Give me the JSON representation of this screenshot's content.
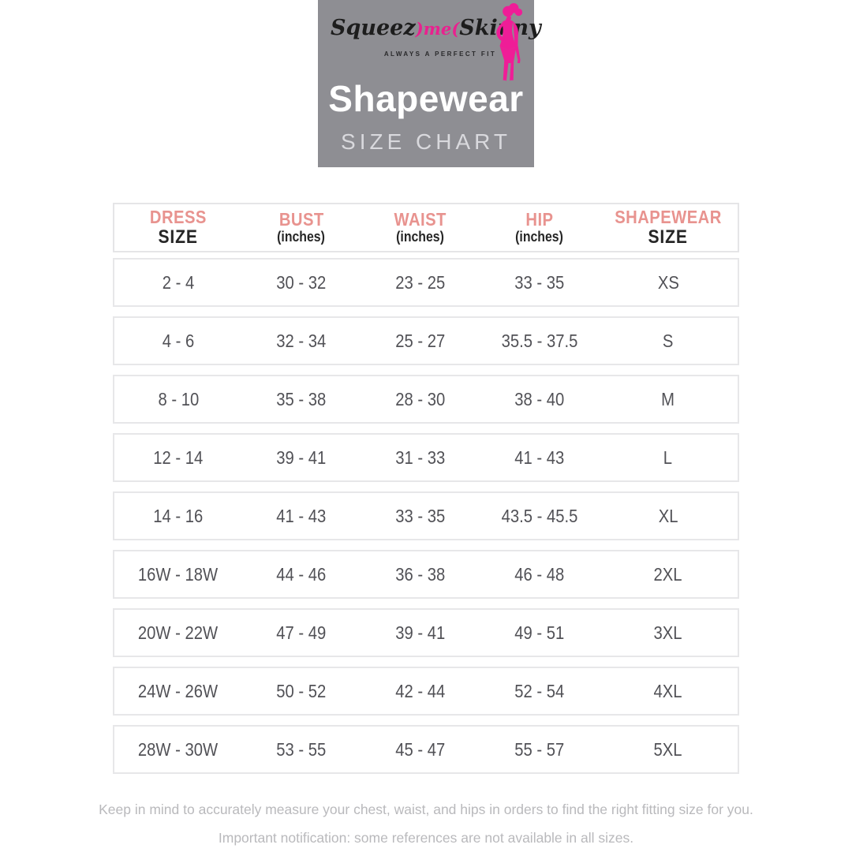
{
  "header": {
    "logo": {
      "part1": "Squeez",
      "part2": ")me(",
      "part3": "Skinny",
      "tagline": "ALWAYS A PERFECT FIT"
    },
    "title": "Shapewear",
    "subtitle": "SIZE CHART"
  },
  "colors": {
    "hero_background": "#8e8e93",
    "logo_pink": "#e9218f",
    "silhouette_pink": "#ef1d97",
    "column_header_pink": "#e8938f",
    "column_header_black": "#262626",
    "cell_text_gray": "#515156",
    "row_border": "#e7e7e9",
    "footer_gray": "#b9b9bc"
  },
  "chart_data": {
    "type": "table",
    "title": "Shapewear Size Chart",
    "columns": [
      {
        "label": "DRESS",
        "sublabel": "SIZE"
      },
      {
        "label": "BUST",
        "sublabel": "(inches)"
      },
      {
        "label": "WAIST",
        "sublabel": "(inches)"
      },
      {
        "label": "HIP",
        "sublabel": "(inches)"
      },
      {
        "label": "SHAPEWEAR",
        "sublabel": "SIZE"
      }
    ],
    "rows": [
      [
        "2 - 4",
        "30 - 32",
        "23 - 25",
        "33 - 35",
        "XS"
      ],
      [
        "4 - 6",
        "32 - 34",
        "25 - 27",
        "35.5 - 37.5",
        "S"
      ],
      [
        "8 - 10",
        "35 - 38",
        "28 - 30",
        "38 - 40",
        "M"
      ],
      [
        "12 - 14",
        "39 - 41",
        "31 - 33",
        "41 - 43",
        "L"
      ],
      [
        "14 - 16",
        "41 - 43",
        "33 - 35",
        "43.5 - 45.5",
        "XL"
      ],
      [
        "16W - 18W",
        "44 - 46",
        "36 - 38",
        "46 - 48",
        "2XL"
      ],
      [
        "20W - 22W",
        "47 - 49",
        "39 - 41",
        "49 - 51",
        "3XL"
      ],
      [
        "24W - 26W",
        "50 - 52",
        "42 - 44",
        "52 - 54",
        "4XL"
      ],
      [
        "28W - 30W",
        "53 - 55",
        "45 - 47",
        "55 - 57",
        "5XL"
      ]
    ]
  },
  "footer": {
    "line1": "Keep in mind to accurately measure your chest, waist, and hips in orders to find the right fitting size for you.",
    "line2": "Important notification: some references  are not available in all sizes."
  }
}
